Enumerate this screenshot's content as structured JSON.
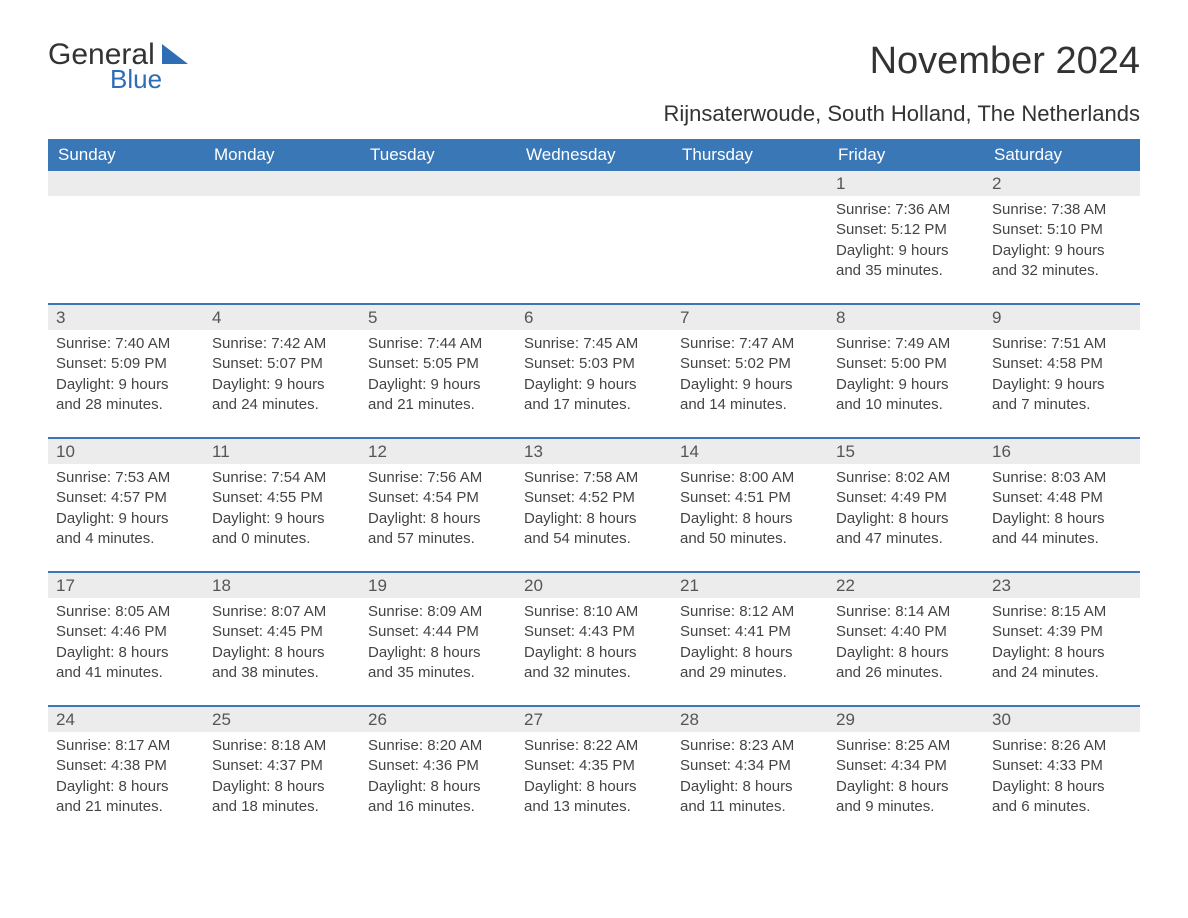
{
  "logo": {
    "word1": "General",
    "word2": "Blue"
  },
  "title": "November 2024",
  "location": "Rijnsaterwoude, South Holland, The Netherlands",
  "style": {
    "header_bg": "#3a77b7",
    "header_text": "#ffffff",
    "daynum_bg": "#ececec",
    "daynum_text": "#555555",
    "body_text": "#444444",
    "rule_color": "#3a77b7",
    "page_bg": "#ffffff",
    "logo_accent": "#2f6eb5",
    "title_fontsize": 38,
    "location_fontsize": 22,
    "th_fontsize": 17,
    "cell_fontsize": 15
  },
  "weekdays": [
    "Sunday",
    "Monday",
    "Tuesday",
    "Wednesday",
    "Thursday",
    "Friday",
    "Saturday"
  ],
  "weeks": [
    [
      null,
      null,
      null,
      null,
      null,
      {
        "n": "1",
        "sr": "Sunrise: 7:36 AM",
        "ss": "Sunset: 5:12 PM",
        "d1": "Daylight: 9 hours",
        "d2": "and 35 minutes."
      },
      {
        "n": "2",
        "sr": "Sunrise: 7:38 AM",
        "ss": "Sunset: 5:10 PM",
        "d1": "Daylight: 9 hours",
        "d2": "and 32 minutes."
      }
    ],
    [
      {
        "n": "3",
        "sr": "Sunrise: 7:40 AM",
        "ss": "Sunset: 5:09 PM",
        "d1": "Daylight: 9 hours",
        "d2": "and 28 minutes."
      },
      {
        "n": "4",
        "sr": "Sunrise: 7:42 AM",
        "ss": "Sunset: 5:07 PM",
        "d1": "Daylight: 9 hours",
        "d2": "and 24 minutes."
      },
      {
        "n": "5",
        "sr": "Sunrise: 7:44 AM",
        "ss": "Sunset: 5:05 PM",
        "d1": "Daylight: 9 hours",
        "d2": "and 21 minutes."
      },
      {
        "n": "6",
        "sr": "Sunrise: 7:45 AM",
        "ss": "Sunset: 5:03 PM",
        "d1": "Daylight: 9 hours",
        "d2": "and 17 minutes."
      },
      {
        "n": "7",
        "sr": "Sunrise: 7:47 AM",
        "ss": "Sunset: 5:02 PM",
        "d1": "Daylight: 9 hours",
        "d2": "and 14 minutes."
      },
      {
        "n": "8",
        "sr": "Sunrise: 7:49 AM",
        "ss": "Sunset: 5:00 PM",
        "d1": "Daylight: 9 hours",
        "d2": "and 10 minutes."
      },
      {
        "n": "9",
        "sr": "Sunrise: 7:51 AM",
        "ss": "Sunset: 4:58 PM",
        "d1": "Daylight: 9 hours",
        "d2": "and 7 minutes."
      }
    ],
    [
      {
        "n": "10",
        "sr": "Sunrise: 7:53 AM",
        "ss": "Sunset: 4:57 PM",
        "d1": "Daylight: 9 hours",
        "d2": "and 4 minutes."
      },
      {
        "n": "11",
        "sr": "Sunrise: 7:54 AM",
        "ss": "Sunset: 4:55 PM",
        "d1": "Daylight: 9 hours",
        "d2": "and 0 minutes."
      },
      {
        "n": "12",
        "sr": "Sunrise: 7:56 AM",
        "ss": "Sunset: 4:54 PM",
        "d1": "Daylight: 8 hours",
        "d2": "and 57 minutes."
      },
      {
        "n": "13",
        "sr": "Sunrise: 7:58 AM",
        "ss": "Sunset: 4:52 PM",
        "d1": "Daylight: 8 hours",
        "d2": "and 54 minutes."
      },
      {
        "n": "14",
        "sr": "Sunrise: 8:00 AM",
        "ss": "Sunset: 4:51 PM",
        "d1": "Daylight: 8 hours",
        "d2": "and 50 minutes."
      },
      {
        "n": "15",
        "sr": "Sunrise: 8:02 AM",
        "ss": "Sunset: 4:49 PM",
        "d1": "Daylight: 8 hours",
        "d2": "and 47 minutes."
      },
      {
        "n": "16",
        "sr": "Sunrise: 8:03 AM",
        "ss": "Sunset: 4:48 PM",
        "d1": "Daylight: 8 hours",
        "d2": "and 44 minutes."
      }
    ],
    [
      {
        "n": "17",
        "sr": "Sunrise: 8:05 AM",
        "ss": "Sunset: 4:46 PM",
        "d1": "Daylight: 8 hours",
        "d2": "and 41 minutes."
      },
      {
        "n": "18",
        "sr": "Sunrise: 8:07 AM",
        "ss": "Sunset: 4:45 PM",
        "d1": "Daylight: 8 hours",
        "d2": "and 38 minutes."
      },
      {
        "n": "19",
        "sr": "Sunrise: 8:09 AM",
        "ss": "Sunset: 4:44 PM",
        "d1": "Daylight: 8 hours",
        "d2": "and 35 minutes."
      },
      {
        "n": "20",
        "sr": "Sunrise: 8:10 AM",
        "ss": "Sunset: 4:43 PM",
        "d1": "Daylight: 8 hours",
        "d2": "and 32 minutes."
      },
      {
        "n": "21",
        "sr": "Sunrise: 8:12 AM",
        "ss": "Sunset: 4:41 PM",
        "d1": "Daylight: 8 hours",
        "d2": "and 29 minutes."
      },
      {
        "n": "22",
        "sr": "Sunrise: 8:14 AM",
        "ss": "Sunset: 4:40 PM",
        "d1": "Daylight: 8 hours",
        "d2": "and 26 minutes."
      },
      {
        "n": "23",
        "sr": "Sunrise: 8:15 AM",
        "ss": "Sunset: 4:39 PM",
        "d1": "Daylight: 8 hours",
        "d2": "and 24 minutes."
      }
    ],
    [
      {
        "n": "24",
        "sr": "Sunrise: 8:17 AM",
        "ss": "Sunset: 4:38 PM",
        "d1": "Daylight: 8 hours",
        "d2": "and 21 minutes."
      },
      {
        "n": "25",
        "sr": "Sunrise: 8:18 AM",
        "ss": "Sunset: 4:37 PM",
        "d1": "Daylight: 8 hours",
        "d2": "and 18 minutes."
      },
      {
        "n": "26",
        "sr": "Sunrise: 8:20 AM",
        "ss": "Sunset: 4:36 PM",
        "d1": "Daylight: 8 hours",
        "d2": "and 16 minutes."
      },
      {
        "n": "27",
        "sr": "Sunrise: 8:22 AM",
        "ss": "Sunset: 4:35 PM",
        "d1": "Daylight: 8 hours",
        "d2": "and 13 minutes."
      },
      {
        "n": "28",
        "sr": "Sunrise: 8:23 AM",
        "ss": "Sunset: 4:34 PM",
        "d1": "Daylight: 8 hours",
        "d2": "and 11 minutes."
      },
      {
        "n": "29",
        "sr": "Sunrise: 8:25 AM",
        "ss": "Sunset: 4:34 PM",
        "d1": "Daylight: 8 hours",
        "d2": "and 9 minutes."
      },
      {
        "n": "30",
        "sr": "Sunrise: 8:26 AM",
        "ss": "Sunset: 4:33 PM",
        "d1": "Daylight: 8 hours",
        "d2": "and 6 minutes."
      }
    ]
  ]
}
